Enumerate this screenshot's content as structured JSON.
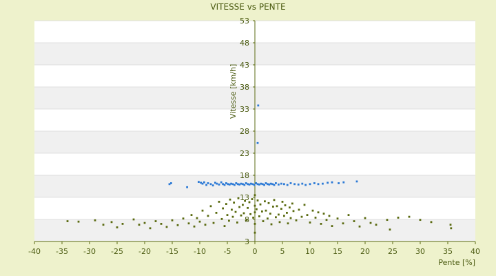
{
  "chart_data": {
    "type": "scatter",
    "title": "VITESSE vs PENTE",
    "xlabel": "Pente [%]",
    "ylabel": "Vitesse [km/h]",
    "xlim": [
      -40,
      40
    ],
    "ylim": [
      3,
      53
    ],
    "xticks": [
      -40,
      -35,
      -30,
      -25,
      -20,
      -15,
      -10,
      -5,
      0,
      5,
      10,
      15,
      20,
      25,
      30,
      35,
      40
    ],
    "yticks": [
      3,
      8,
      13,
      18,
      23,
      28,
      33,
      38,
      43,
      48,
      53
    ],
    "grid": "alternating horizontal bands",
    "series": [
      {
        "color": "#2e7bd6",
        "points": [
          [
            -15.5,
            16.0
          ],
          [
            -15.2,
            16.2
          ],
          [
            -12.3,
            15.3
          ],
          [
            -10.2,
            16.5
          ],
          [
            -9.8,
            16.3
          ],
          [
            -9.5,
            16.1
          ],
          [
            -9.2,
            16.4
          ],
          [
            -8.8,
            15.8
          ],
          [
            -8.5,
            16.2
          ],
          [
            -8.0,
            16.0
          ],
          [
            -7.6,
            15.7
          ],
          [
            -7.2,
            16.3
          ],
          [
            -6.9,
            16.1
          ],
          [
            -6.5,
            15.9
          ],
          [
            -6.1,
            16.4
          ],
          [
            -5.8,
            16.0
          ],
          [
            -5.5,
            15.8
          ],
          [
            -5.2,
            16.2
          ],
          [
            -4.9,
            16.0
          ],
          [
            -4.6,
            15.9
          ],
          [
            -4.3,
            16.1
          ],
          [
            -4.0,
            16.0
          ],
          [
            -3.7,
            15.8
          ],
          [
            -3.4,
            16.2
          ],
          [
            -3.1,
            16.0
          ],
          [
            -2.8,
            15.9
          ],
          [
            -2.5,
            16.1
          ],
          [
            -2.2,
            16.0
          ],
          [
            -1.9,
            15.8
          ],
          [
            -1.6,
            16.2
          ],
          [
            -1.3,
            16.0
          ],
          [
            -1.0,
            15.9
          ],
          [
            -0.7,
            16.1
          ],
          [
            -0.4,
            16.0
          ],
          [
            -0.1,
            15.8
          ],
          [
            0.2,
            16.2
          ],
          [
            0.5,
            16.0
          ],
          [
            0.8,
            15.9
          ],
          [
            1.1,
            16.1
          ],
          [
            1.4,
            16.0
          ],
          [
            1.7,
            15.8
          ],
          [
            2.0,
            16.2
          ],
          [
            2.3,
            16.0
          ],
          [
            2.6,
            15.9
          ],
          [
            2.9,
            16.1
          ],
          [
            3.2,
            16.0
          ],
          [
            3.5,
            15.8
          ],
          [
            3.8,
            16.2
          ],
          [
            4.3,
            15.9
          ],
          [
            4.8,
            16.1
          ],
          [
            5.3,
            16.0
          ],
          [
            5.9,
            15.8
          ],
          [
            6.5,
            16.2
          ],
          [
            7.2,
            16.0
          ],
          [
            7.9,
            15.9
          ],
          [
            8.6,
            16.1
          ],
          [
            9.2,
            15.8
          ],
          [
            10.0,
            16.0
          ],
          [
            10.8,
            16.2
          ],
          [
            11.5,
            16.0
          ],
          [
            12.3,
            16.1
          ],
          [
            13.2,
            16.3
          ],
          [
            14.0,
            16.4
          ],
          [
            15.2,
            16.2
          ],
          [
            16.1,
            16.4
          ],
          [
            18.5,
            16.6
          ],
          [
            0.5,
            25.3
          ],
          [
            0.6,
            33.8
          ]
        ]
      },
      {
        "color": "#5a6a10",
        "points": [
          [
            -34,
            7.6
          ],
          [
            -32,
            7.5
          ],
          [
            -29,
            7.8
          ],
          [
            -27.5,
            6.8
          ],
          [
            -26,
            7.4
          ],
          [
            -25,
            6.2
          ],
          [
            -24,
            7.0
          ],
          [
            -22,
            8.0
          ],
          [
            -21,
            6.8
          ],
          [
            -20,
            7.2
          ],
          [
            -19,
            6.0
          ],
          [
            -18,
            7.6
          ],
          [
            -17,
            7.0
          ],
          [
            -16,
            6.3
          ],
          [
            -15,
            7.8
          ],
          [
            -14,
            6.7
          ],
          [
            -13,
            8.2
          ],
          [
            -12,
            7.1
          ],
          [
            -11.5,
            9.0
          ],
          [
            -11,
            6.4
          ],
          [
            -10.5,
            8.3
          ],
          [
            -10,
            7.5
          ],
          [
            -9.5,
            10.0
          ],
          [
            -9,
            6.8
          ],
          [
            -8.5,
            8.8
          ],
          [
            -8,
            11.0
          ],
          [
            -7.5,
            7.2
          ],
          [
            -7,
            9.5
          ],
          [
            -6.5,
            12.0
          ],
          [
            -6,
            8.1
          ],
          [
            -5.8,
            10.5
          ],
          [
            -5.5,
            6.5
          ],
          [
            -5.2,
            11.5
          ],
          [
            -5,
            9.0
          ],
          [
            -4.7,
            7.7
          ],
          [
            -4.5,
            12.5
          ],
          [
            -4.2,
            10.2
          ],
          [
            -4,
            8.6
          ],
          [
            -3.8,
            11.8
          ],
          [
            -3.5,
            9.7
          ],
          [
            -3.2,
            7.3
          ],
          [
            -3,
            12.8
          ],
          [
            -2.8,
            10.8
          ],
          [
            -2.5,
            8.9
          ],
          [
            -2.2,
            11.3
          ],
          [
            -2,
            9.4
          ],
          [
            -1.8,
            12.2
          ],
          [
            -1.5,
            7.9
          ],
          [
            -1.3,
            10.6
          ],
          [
            -1,
            11.9
          ],
          [
            -0.8,
            9.2
          ],
          [
            -0.5,
            12.6
          ],
          [
            -0.3,
            8.4
          ],
          [
            0,
            11.1
          ],
          [
            0,
            9.6
          ],
          [
            0,
            7.0
          ],
          [
            0,
            5.0
          ],
          [
            0,
            13.5
          ],
          [
            0.3,
            10.3
          ],
          [
            0.5,
            12.3
          ],
          [
            0.8,
            8.7
          ],
          [
            1,
            11.4
          ],
          [
            1.3,
            9.8
          ],
          [
            1.5,
            7.6
          ],
          [
            1.8,
            12.1
          ],
          [
            2,
            10.0
          ],
          [
            2.3,
            8.2
          ],
          [
            2.5,
            11.7
          ],
          [
            2.8,
            9.3
          ],
          [
            3,
            6.9
          ],
          [
            3.3,
            10.9
          ],
          [
            3.5,
            12.4
          ],
          [
            3.8,
            8.5
          ],
          [
            4,
            11.0
          ],
          [
            4.3,
            9.1
          ],
          [
            4.5,
            7.4
          ],
          [
            4.8,
            10.4
          ],
          [
            5,
            12.0
          ],
          [
            5.3,
            8.8
          ],
          [
            5.5,
            11.2
          ],
          [
            5.8,
            9.5
          ],
          [
            6,
            7.1
          ],
          [
            6.3,
            10.7
          ],
          [
            6.5,
            8.3
          ],
          [
            6.8,
            11.6
          ],
          [
            7,
            9.9
          ],
          [
            7.5,
            7.8
          ],
          [
            8,
            10.2
          ],
          [
            8.5,
            8.6
          ],
          [
            9,
            11.3
          ],
          [
            9.5,
            9.0
          ],
          [
            10,
            7.3
          ],
          [
            10.5,
            10.0
          ],
          [
            11,
            8.4
          ],
          [
            11.5,
            9.6
          ],
          [
            12,
            7.0
          ],
          [
            12.5,
            9.3
          ],
          [
            13,
            7.9
          ],
          [
            13.5,
            8.8
          ],
          [
            14,
            6.5
          ],
          [
            15,
            8.2
          ],
          [
            16,
            7.1
          ],
          [
            17,
            9.0
          ],
          [
            18,
            7.6
          ],
          [
            19,
            6.4
          ],
          [
            20,
            8.3
          ],
          [
            21,
            7.2
          ],
          [
            22,
            6.8
          ],
          [
            24,
            7.9
          ],
          [
            24.5,
            5.7
          ],
          [
            26,
            8.4
          ],
          [
            28,
            8.6
          ],
          [
            30,
            7.9
          ],
          [
            32,
            7.4
          ],
          [
            35.5,
            6.8
          ],
          [
            35.6,
            6.0
          ]
        ]
      }
    ]
  }
}
